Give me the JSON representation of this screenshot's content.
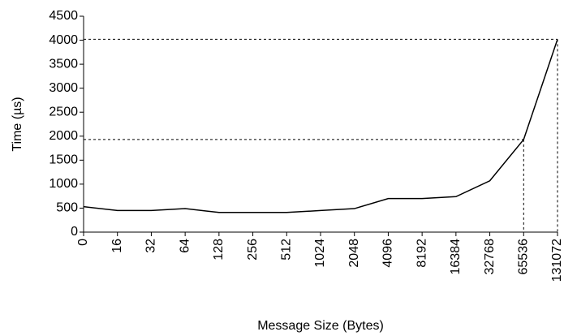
{
  "chart_data": {
    "type": "line",
    "x_label": "Message Size (Bytes)",
    "y_label": "Time (µs)",
    "categories": [
      "0",
      "16",
      "32",
      "64",
      "128",
      "256",
      "512",
      "1024",
      "2048",
      "4096",
      "8192",
      "16384",
      "32768",
      "65536",
      "131072"
    ],
    "series": [
      {
        "name": "Time",
        "color": "#000000",
        "values": [
          530,
          450,
          450,
          490,
          410,
          410,
          410,
          450,
          490,
          700,
          700,
          740,
          1070,
          1930,
          4020
        ]
      }
    ],
    "ylim": [
      0,
      4500
    ],
    "yticks": [
      0,
      500,
      1000,
      1500,
      2000,
      2500,
      3000,
      3500,
      4000,
      4500
    ],
    "guide_points": [
      13,
      14
    ]
  }
}
